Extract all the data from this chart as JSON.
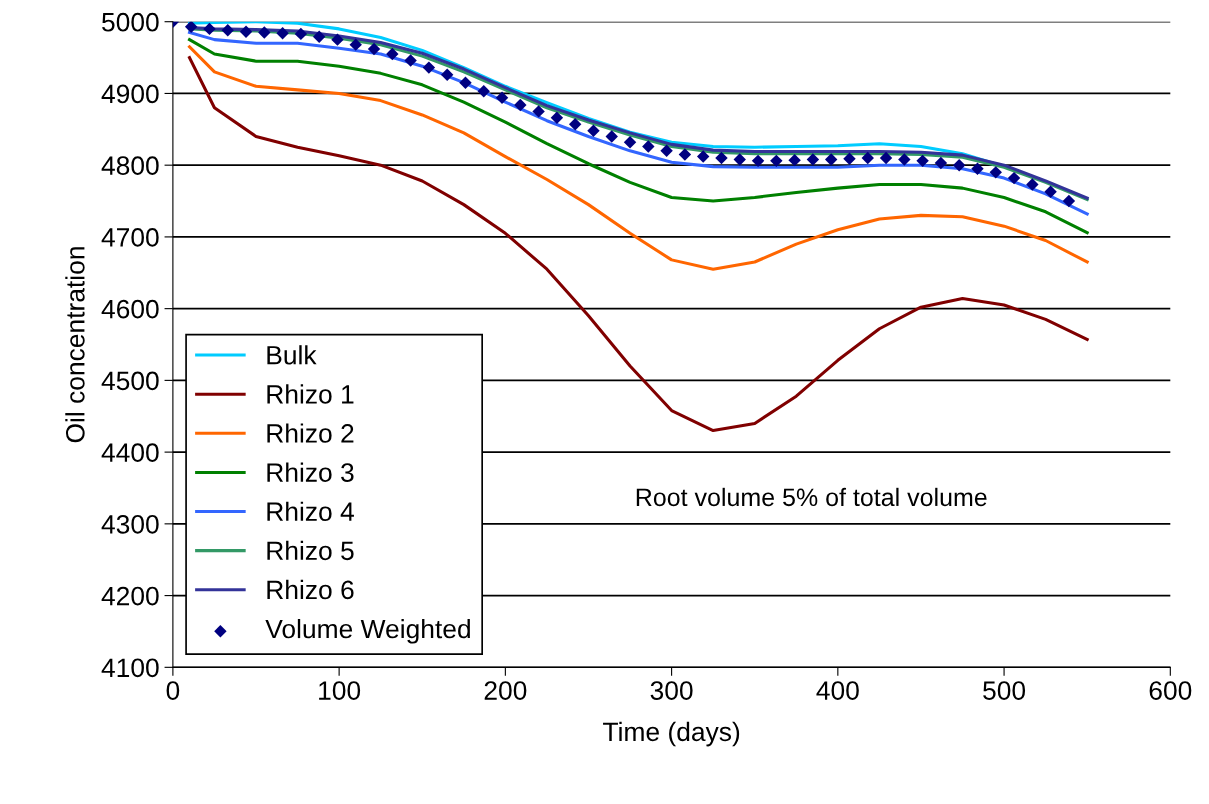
{
  "chart_data": {
    "type": "line",
    "xlabel": "Time (days)",
    "ylabel": "Oil concentration",
    "xlim": [
      0,
      600
    ],
    "xticks": [
      0,
      100,
      200,
      300,
      400,
      500,
      600
    ],
    "ylim": [
      4100,
      5000
    ],
    "yticks": [
      4100,
      4200,
      4300,
      4400,
      4500,
      4600,
      4700,
      4800,
      4900,
      5000
    ],
    "grid": "y",
    "legend": "lower left",
    "marker": "none",
    "annotations": [
      "Root volume 5% of total volume"
    ],
    "x": [
      10,
      25,
      50,
      75,
      100,
      125,
      150,
      175,
      200,
      225,
      250,
      275,
      300,
      325,
      350,
      375,
      400,
      425,
      450,
      475,
      500,
      525,
      550
    ],
    "series": [
      {
        "name": "Bulk",
        "color": "#00ccff",
        "values": [
          4998,
          4999,
          5000,
          4998,
          4990,
          4978,
          4960,
          4936,
          4910,
          4887,
          4865,
          4846,
          4832,
          4826,
          4825,
          4826,
          4827,
          4830,
          4826,
          4816,
          4798,
          null,
          null
        ]
      },
      {
        "name": "Rhizo 1",
        "color": "#800000",
        "values": [
          4950,
          4880,
          4840,
          4825,
          4813,
          4800,
          4778,
          4745,
          4705,
          4655,
          4590,
          4520,
          4458,
          4430,
          4440,
          4478,
          4528,
          4572,
          4602,
          4614,
          4605,
          4585,
          4557
        ]
      },
      {
        "name": "Rhizo 2",
        "color": "#ff6600",
        "values": [
          4965,
          4930,
          4910,
          4905,
          4900,
          4890,
          4870,
          4845,
          4812,
          4780,
          4745,
          4705,
          4668,
          4655,
          4665,
          4690,
          4710,
          4725,
          4730,
          4728,
          4715,
          4695,
          4665
        ]
      },
      {
        "name": "Rhizo 3",
        "color": "#008000",
        "values": [
          4975,
          4955,
          4945,
          4945,
          4938,
          4928,
          4912,
          4888,
          4860,
          4830,
          4802,
          4776,
          4755,
          4750,
          4755,
          4762,
          4768,
          4773,
          4773,
          4768,
          4755,
          4735,
          4706
        ]
      },
      {
        "name": "Rhizo 4",
        "color": "#3366ff",
        "values": [
          4985,
          4975,
          4970,
          4970,
          4963,
          4955,
          4938,
          4915,
          4888,
          4862,
          4840,
          4820,
          4804,
          4798,
          4797,
          4797,
          4797,
          4800,
          4800,
          4795,
          4782,
          4760,
          4732
        ]
      },
      {
        "name": "Rhizo 5",
        "color": "#339966",
        "values": [
          4990,
          4988,
          4987,
          4984,
          4977,
          4968,
          4952,
          4930,
          4905,
          4880,
          4860,
          4842,
          4826,
          4818,
          4816,
          4816,
          4816,
          4816,
          4815,
          4811,
          4797,
          4776,
          4752
        ]
      },
      {
        "name": "Rhizo 6",
        "color": "#333399",
        "values": [
          4992,
          4990,
          4989,
          4987,
          4980,
          4971,
          4956,
          4934,
          4908,
          4883,
          4863,
          4845,
          4829,
          4821,
          4819,
          4819,
          4819,
          4819,
          4818,
          4814,
          4800,
          4778,
          4754
        ]
      },
      {
        "name": "Volume Weighted",
        "type": "scatter",
        "marker": "diamond",
        "color": "#000080",
        "x": [
          0,
          11,
          22,
          33,
          44,
          55,
          66,
          77,
          88,
          99,
          110,
          121,
          132,
          143,
          154,
          165,
          176,
          187,
          198,
          209,
          220,
          231,
          242,
          253,
          264,
          275,
          286,
          297,
          308,
          319,
          330,
          341,
          352,
          363,
          374,
          385,
          396,
          407,
          418,
          429,
          440,
          451,
          462,
          473,
          484,
          495,
          506,
          517,
          528,
          539
        ],
        "values": [
          5000,
          4993,
          4990,
          4988,
          4986,
          4985,
          4984,
          4983,
          4979,
          4975,
          4968,
          4962,
          4955,
          4946,
          4936,
          4926,
          4915,
          4903,
          4894,
          4884,
          4875,
          4866,
          4857,
          4848,
          4840,
          4832,
          4826,
          4820,
          4815,
          4812,
          4810,
          4808,
          4806,
          4806,
          4807,
          4808,
          4808,
          4809,
          4810,
          4810,
          4808,
          4806,
          4803,
          4800,
          4795,
          4790,
          4782,
          4773,
          4763,
          4750
        ]
      }
    ]
  }
}
